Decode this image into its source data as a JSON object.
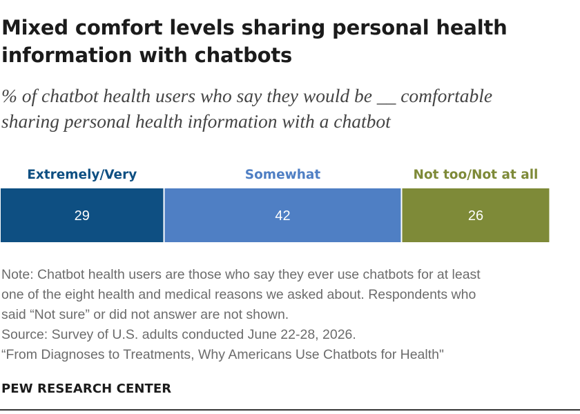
{
  "chart_data": {
    "type": "bar",
    "stacked": true,
    "orientation": "horizontal",
    "title": "Mixed comfort levels sharing personal health information with chatbots",
    "subtitle": "% of chatbot health users who say they would be __ comfortable sharing personal health information with a chatbot",
    "categories": [
      ""
    ],
    "series": [
      {
        "name": "Extremely/Very",
        "values": [
          29
        ],
        "color": "#0e4f82"
      },
      {
        "name": "Somewhat",
        "values": [
          42
        ],
        "color": "#4f7fc4"
      },
      {
        "name": "Not too/Not at all",
        "values": [
          26
        ],
        "color": "#7e8a38"
      }
    ],
    "legend_placement": "top",
    "data_labels": true,
    "grid": false
  },
  "header": {
    "title_line1": "Mixed comfort levels sharing personal health",
    "title_line2": "information with chatbots",
    "subtitle_line1": "% of chatbot health users who say they would be __ comfortable",
    "subtitle_line2": "sharing personal health information with a chatbot"
  },
  "footer": {
    "note_line1": "Note: Chatbot health users are those who say they ever use chatbots for at least",
    "note_line2": "one of the eight health and medical reasons we asked about. Respondents who",
    "note_line3": "said “Not sure” or did not answer are not shown.",
    "source": "Source: Survey of U.S. adults conducted June 22-28, 2026.",
    "report": "“From Diagnoses to Treatments, Why Americans Use Chatbots for Health\"",
    "brand": "PEW RESEARCH CENTER"
  },
  "colors": {
    "text_label_color": "#ffffff"
  }
}
